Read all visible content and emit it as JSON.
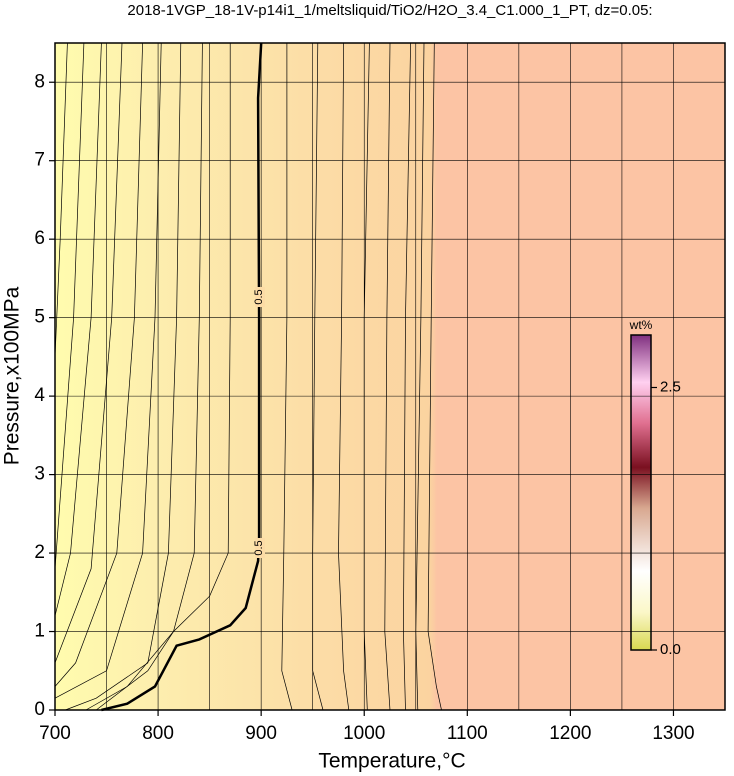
{
  "chart_data": {
    "type": "contour",
    "title": "2018-1VGP_18-1V-p14i1_1/meltsliquid/TiO2/H2O_3.4_C1.000_1_PT, dz=0.05:",
    "x_label": "Temperature,°C",
    "y_label": "Pressure,x100MPa",
    "xlim": [
      700,
      1350
    ],
    "ylim": [
      0,
      8.5
    ],
    "xticks": [
      700,
      800,
      900,
      1000,
      1100,
      1200,
      1300
    ],
    "xminorticks": [
      750,
      850,
      950,
      1050,
      1150,
      1250
    ],
    "yticks": [
      0,
      1,
      2,
      3,
      4,
      5,
      6,
      7,
      8
    ],
    "grid": true,
    "colorbar": {
      "label": "wt%",
      "clim": [
        0,
        3
      ],
      "ticks": [
        {
          "value": 0,
          "label": "0.0"
        },
        {
          "value": 2.5,
          "label": "2.5"
        }
      ]
    },
    "contours": [
      {
        "level": 0.05,
        "x": [
          712,
          705,
          700
        ],
        "y": [
          8.5,
          6,
          4.5
        ]
      },
      {
        "level": 0.1,
        "x": [
          728,
          718,
          700
        ],
        "y": [
          8.5,
          5,
          1.8
        ]
      },
      {
        "level": 0.15,
        "x": [
          745,
          735,
          715,
          700
        ],
        "y": [
          8.5,
          5,
          2,
          1.2
        ]
      },
      {
        "level": 0.2,
        "x": [
          765,
          755,
          735,
          700
        ],
        "y": [
          8.5,
          5,
          1.8,
          0.6
        ]
      },
      {
        "level": 0.25,
        "x": [
          785,
          777,
          760,
          720,
          700
        ],
        "y": [
          8.5,
          5,
          2,
          0.6,
          0.3
        ]
      },
      {
        "level": 0.3,
        "x": [
          803,
          797,
          785,
          750,
          700
        ],
        "y": [
          8.5,
          5,
          2,
          0.5,
          0.15
        ]
      },
      {
        "level": 0.35,
        "x": [
          822,
          818,
          810,
          790,
          740,
          710
        ],
        "y": [
          8.5,
          5,
          2,
          0.6,
          0.15,
          0
        ]
      },
      {
        "level": 0.4,
        "x": [
          843,
          840,
          835,
          815,
          770,
          730
        ],
        "y": [
          8.5,
          5,
          2,
          1,
          0.3,
          0
        ]
      },
      {
        "level": 0.45,
        "x": [
          870,
          870,
          868,
          850,
          815,
          790,
          740
        ],
        "y": [
          8.5,
          5,
          2,
          1.45,
          1,
          0.5,
          0
        ]
      },
      {
        "level": 0.5,
        "bold": true,
        "x": [
          745,
          770,
          797,
          818,
          840,
          870,
          885,
          897,
          898,
          898,
          897,
          900
        ],
        "y": [
          0,
          0.08,
          0.3,
          0.82,
          0.9,
          1.08,
          1.3,
          1.9,
          2.2,
          5,
          7.8,
          8.5
        ]
      },
      {
        "level": 0.55,
        "x": [
          925,
          925,
          922,
          920,
          930
        ],
        "y": [
          8.5,
          5,
          2,
          0.5,
          0
        ]
      },
      {
        "level": 0.6,
        "x": [
          955,
          952,
          950,
          950,
          960
        ],
        "y": [
          8.5,
          5,
          2,
          0.5,
          0
        ]
      },
      {
        "level": 0.65,
        "x": [
          980,
          978,
          975,
          980,
          985
        ],
        "y": [
          8.5,
          5,
          2,
          0.5,
          0
        ]
      },
      {
        "level": 0.7,
        "x": [
          1005,
          1000,
          1000,
          1003
        ],
        "y": [
          8.5,
          5,
          1,
          0
        ]
      },
      {
        "level": 0.75,
        "x": [
          1025,
          1022,
          1020,
          1025
        ],
        "y": [
          8.5,
          5,
          1,
          0
        ]
      },
      {
        "level": 0.8,
        "x": [
          1045,
          1040,
          1038,
          1040
        ],
        "y": [
          8.5,
          5,
          1,
          0
        ]
      },
      {
        "level": 0.85,
        "x": [
          1058,
          1055,
          1050,
          1052
        ],
        "y": [
          8.5,
          5,
          1,
          0
        ]
      },
      {
        "level": 0.9,
        "x": [
          1068,
          1065,
          1062,
          1070,
          1075
        ],
        "y": [
          8.5,
          5,
          1,
          0.3,
          0
        ]
      }
    ]
  }
}
